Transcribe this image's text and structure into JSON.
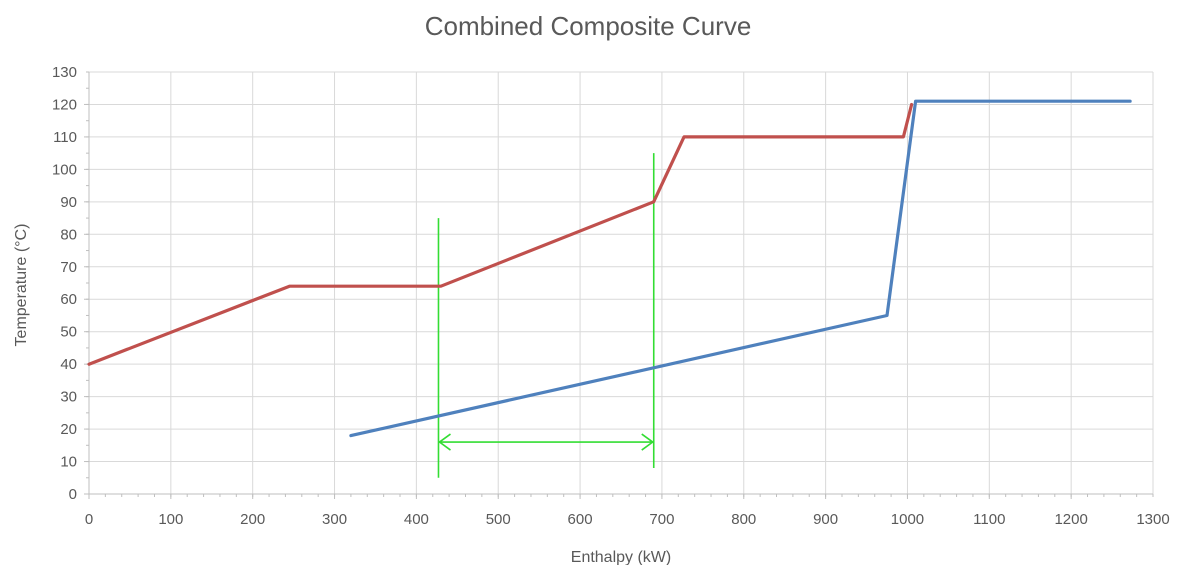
{
  "chart_data": {
    "type": "line",
    "title": "Combined Composite Curve",
    "xlabel": "Enthalpy (kW)",
    "ylabel": "Temperature (°C)",
    "xlim": [
      0,
      1300
    ],
    "ylim": [
      0,
      130
    ],
    "x_ticks": [
      0,
      100,
      200,
      300,
      400,
      500,
      600,
      700,
      800,
      900,
      1000,
      1100,
      1200,
      1300
    ],
    "y_ticks": [
      0,
      10,
      20,
      30,
      40,
      50,
      60,
      70,
      80,
      90,
      100,
      110,
      120,
      130
    ],
    "grid": true,
    "legend": "none",
    "series": [
      {
        "color": "#c0504d",
        "points": [
          [
            0,
            40
          ],
          [
            245,
            64
          ],
          [
            430,
            64
          ],
          [
            690,
            90
          ],
          [
            727,
            110
          ],
          [
            995,
            110
          ],
          [
            1005,
            120
          ]
        ]
      },
      {
        "color": "#4f81bd",
        "points": [
          [
            320,
            18
          ],
          [
            975,
            55
          ],
          [
            1010,
            121
          ],
          [
            1272,
            121
          ]
        ]
      }
    ],
    "annotations": {
      "color": "#33dd33",
      "vertical_lines": [
        {
          "x": 427,
          "y_range": [
            5,
            85
          ]
        },
        {
          "x": 690,
          "y_range": [
            8,
            105
          ]
        }
      ],
      "double_arrow": {
        "x_range": [
          427,
          690
        ],
        "y": 16
      }
    }
  }
}
